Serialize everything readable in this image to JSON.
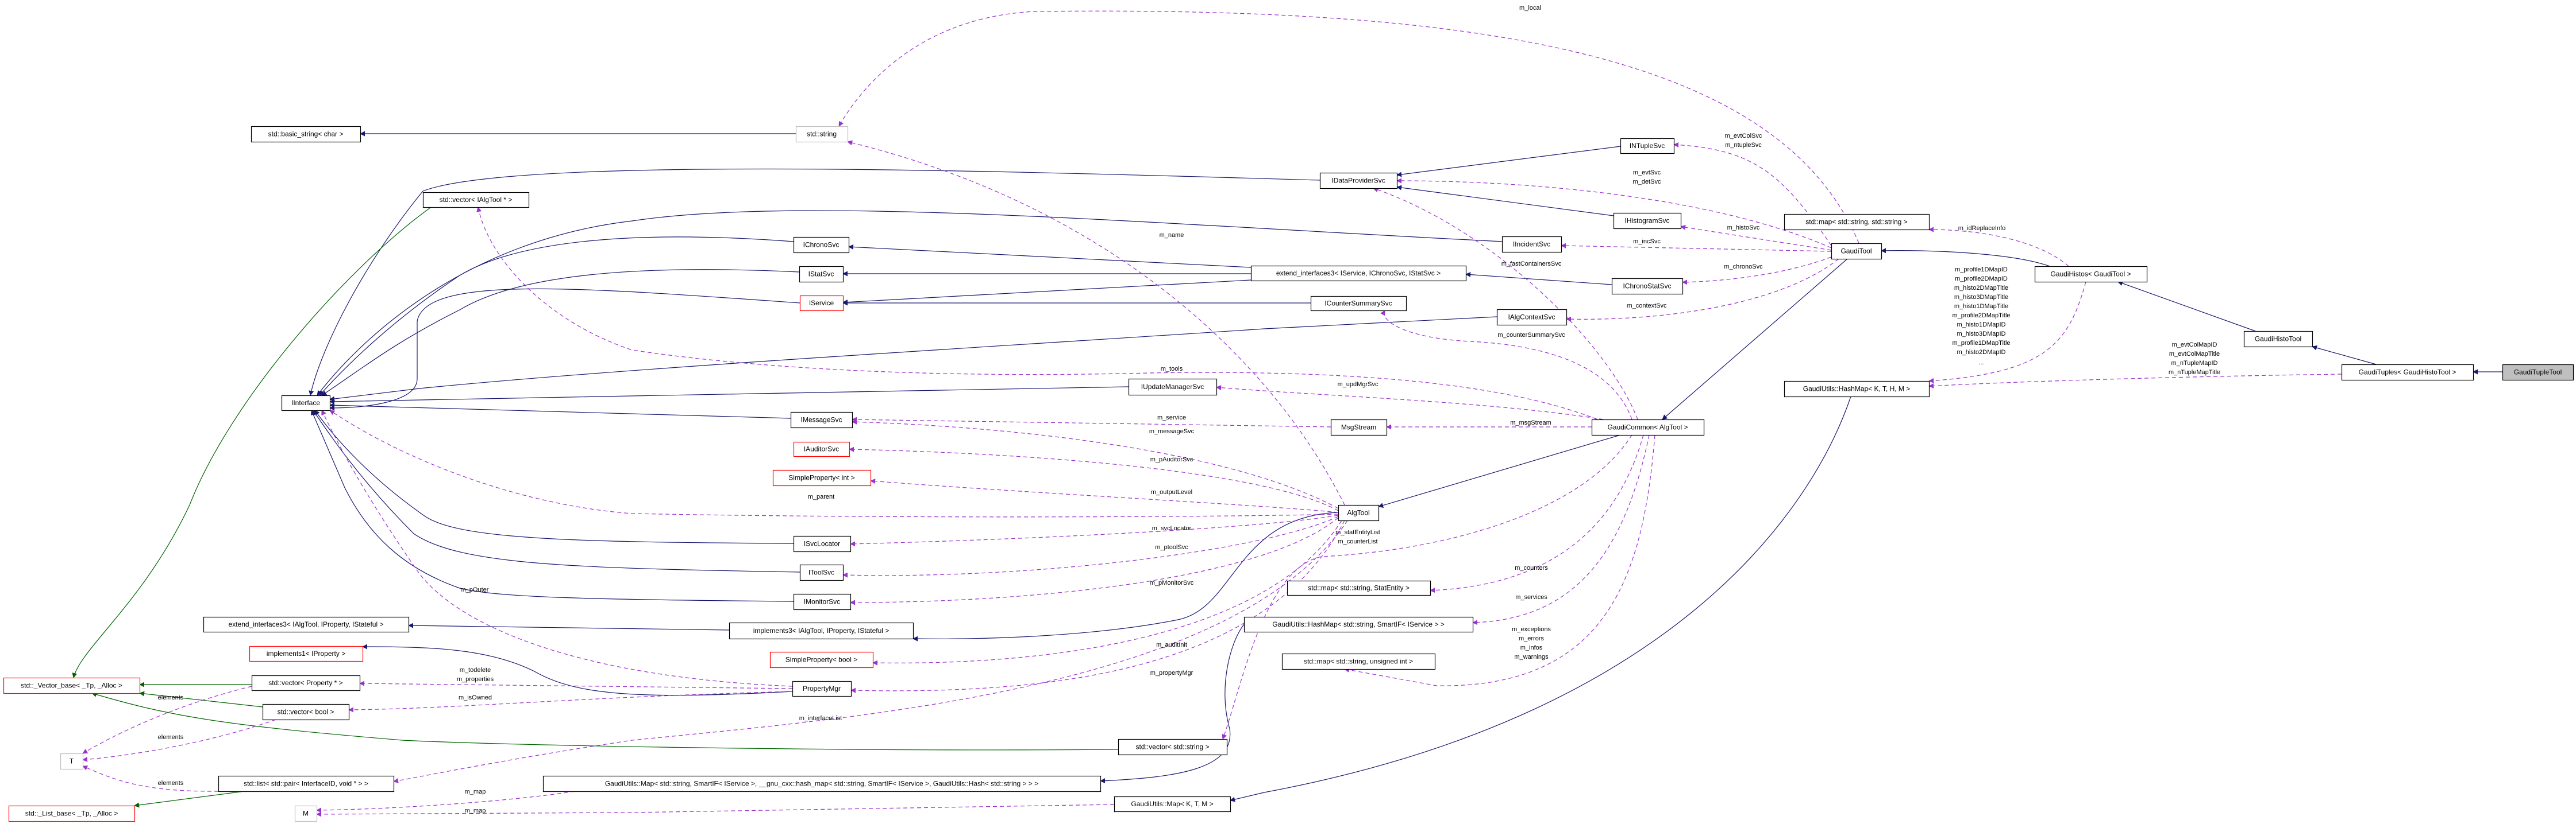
{
  "colors": {
    "inheritance": "#191970",
    "usage": "#9a32cd",
    "template": "#006400",
    "documented_border": "#000000",
    "undocumented_border": "#ff0000",
    "external_border": "#bfbfbf",
    "focus_fill": "#bfbfbf"
  },
  "nodes": [
    {
      "id": "basic_string",
      "label": "std::basic_string< char >",
      "border": "documented"
    },
    {
      "id": "std_string",
      "label": "std::string",
      "border": "external"
    },
    {
      "id": "vec_ialgtool",
      "label": "std::vector< IAlgTool * >",
      "border": "documented"
    },
    {
      "id": "IDataProviderSvc",
      "label": "IDataProviderSvc",
      "border": "documented"
    },
    {
      "id": "INTupleSvc",
      "label": "INTupleSvc",
      "border": "documented"
    },
    {
      "id": "IHistogramSvc",
      "label": "IHistogramSvc",
      "border": "documented"
    },
    {
      "id": "IIncidentSvc",
      "label": "IIncidentSvc",
      "border": "documented"
    },
    {
      "id": "IChronoSvc",
      "label": "IChronoSvc",
      "border": "documented"
    },
    {
      "id": "IStatSvc",
      "label": "IStatSvc",
      "border": "documented"
    },
    {
      "id": "IService",
      "label": "IService",
      "border": "undocumented"
    },
    {
      "id": "ext_svc",
      "label": "extend_interfaces3< IService, IChronoSvc, IStatSvc >",
      "border": "documented"
    },
    {
      "id": "IChronoStatSvc",
      "label": "IChronoStatSvc",
      "border": "documented"
    },
    {
      "id": "ICounterSummarySvc",
      "label": "ICounterSummarySvc",
      "border": "documented"
    },
    {
      "id": "IAlgContextSvc",
      "label": "IAlgContextSvc",
      "border": "documented"
    },
    {
      "id": "GaudiTool",
      "label": "GaudiTool",
      "border": "documented"
    },
    {
      "id": "map_str_str",
      "label": "std::map< std::string, std::string >",
      "border": "documented"
    },
    {
      "id": "GaudiHistos",
      "label": "GaudiHistos< GaudiTool >",
      "border": "documented"
    },
    {
      "id": "GaudiHistoTool",
      "label": "GaudiHistoTool",
      "border": "documented"
    },
    {
      "id": "GaudiTuples",
      "label": "GaudiTuples< GaudiHistoTool >",
      "border": "documented"
    },
    {
      "id": "GaudiTupleTool",
      "label": "GaudiTupleTool",
      "border": "documented",
      "focus": true
    },
    {
      "id": "HashMap_KTHM",
      "label": "GaudiUtils::HashMap< K, T, H, M >",
      "border": "documented"
    },
    {
      "id": "IInterface",
      "label": "IInterface",
      "border": "documented"
    },
    {
      "id": "IUpdateManagerSvc",
      "label": "IUpdateManagerSvc",
      "border": "documented"
    },
    {
      "id": "IMessageSvc",
      "label": "IMessageSvc",
      "border": "documented"
    },
    {
      "id": "MsgStream",
      "label": "MsgStream",
      "border": "documented"
    },
    {
      "id": "GaudiCommon",
      "label": "GaudiCommon< AlgTool >",
      "border": "documented"
    },
    {
      "id": "IAuditorSvc",
      "label": "IAuditorSvc",
      "border": "undocumented"
    },
    {
      "id": "SP_int",
      "label": "SimpleProperty< int >",
      "border": "undocumented"
    },
    {
      "id": "AlgTool",
      "label": "AlgTool",
      "border": "documented"
    },
    {
      "id": "ISvcLocator",
      "label": "ISvcLocator",
      "border": "documented"
    },
    {
      "id": "IToolSvc",
      "label": "IToolSvc",
      "border": "documented"
    },
    {
      "id": "map_str_stat",
      "label": "std::map< std::string, StatEntity >",
      "border": "documented"
    },
    {
      "id": "IMonitorSvc",
      "label": "IMonitorSvc",
      "border": "documented"
    },
    {
      "id": "ext_algtool",
      "label": "extend_interfaces3< IAlgTool, IProperty, IStateful >",
      "border": "documented"
    },
    {
      "id": "HashMap_svc",
      "label": "GaudiUtils::HashMap< std::string, SmartIF< IService > >",
      "border": "documented"
    },
    {
      "id": "implements3",
      "label": "implements3< IAlgTool, IProperty, IStateful >",
      "border": "documented"
    },
    {
      "id": "implements1",
      "label": "implements1< IProperty >",
      "border": "undocumented"
    },
    {
      "id": "SP_bool",
      "label": "SimpleProperty< bool >",
      "border": "undocumented"
    },
    {
      "id": "map_str_uint",
      "label": "std::map< std::string, unsigned int >",
      "border": "documented"
    },
    {
      "id": "vec_property",
      "label": "std::vector< Property * >",
      "border": "documented"
    },
    {
      "id": "vector_base",
      "label": "std::_Vector_base< _Tp, _Alloc >",
      "border": "undocumented"
    },
    {
      "id": "PropertyMgr",
      "label": "PropertyMgr",
      "border": "documented"
    },
    {
      "id": "vec_bool",
      "label": "std::vector< bool >",
      "border": "documented"
    },
    {
      "id": "vec_string",
      "label": "std::vector< std::string >",
      "border": "documented"
    },
    {
      "id": "T",
      "label": "T",
      "border": "external"
    },
    {
      "id": "list_pair",
      "label": "std::list< std::pair< InterfaceID, void * > >",
      "border": "documented"
    },
    {
      "id": "Map_long",
      "label": "GaudiUtils::Map< std::string, SmartIF< IService >, __gnu_cxx::hash_map< std::string, SmartIF< IService >, GaudiUtils::Hash< std::string > > >",
      "border": "documented"
    },
    {
      "id": "Map_KTM",
      "label": "GaudiUtils::Map< K, T, M >",
      "border": "documented"
    },
    {
      "id": "list_base",
      "label": "std::_List_base< _Tp, _Alloc >",
      "border": "undocumented"
    },
    {
      "id": "M",
      "label": "M",
      "border": "external"
    }
  ],
  "edges": [
    {
      "from": "std_string",
      "to": "basic_string",
      "kind": "inheritance",
      "labels": []
    },
    {
      "from": "IDataProviderSvc",
      "to": "IInterface",
      "kind": "inheritance",
      "labels": []
    },
    {
      "from": "INTupleSvc",
      "to": "IDataProviderSvc",
      "kind": "inheritance",
      "labels": []
    },
    {
      "from": "IHistogramSvc",
      "to": "IDataProviderSvc",
      "kind": "inheritance",
      "labels": []
    },
    {
      "from": "IIncidentSvc",
      "to": "IInterface",
      "kind": "inheritance",
      "labels": []
    },
    {
      "from": "IChronoSvc",
      "to": "IInterface",
      "kind": "inheritance",
      "labels": []
    },
    {
      "from": "IStatSvc",
      "to": "IInterface",
      "kind": "inheritance",
      "labels": []
    },
    {
      "from": "IService",
      "to": "IInterface",
      "kind": "inheritance",
      "labels": []
    },
    {
      "from": "IAlgContextSvc",
      "to": "IInterface",
      "kind": "inheritance",
      "labels": []
    },
    {
      "from": "ICounterSummarySvc",
      "to": "IService",
      "kind": "inheritance",
      "labels": []
    },
    {
      "from": "ext_svc",
      "to": "IChronoSvc",
      "kind": "inheritance",
      "labels": []
    },
    {
      "from": "ext_svc",
      "to": "IStatSvc",
      "kind": "inheritance",
      "labels": []
    },
    {
      "from": "ext_svc",
      "to": "IService",
      "kind": "inheritance",
      "labels": []
    },
    {
      "from": "IChronoStatSvc",
      "to": "ext_svc",
      "kind": "inheritance",
      "labels": []
    },
    {
      "from": "IUpdateManagerSvc",
      "to": "IInterface",
      "kind": "inheritance",
      "labels": []
    },
    {
      "from": "IMessageSvc",
      "to": "IInterface",
      "kind": "inheritance",
      "labels": []
    },
    {
      "from": "ISvcLocator",
      "to": "IInterface",
      "kind": "inheritance",
      "labels": []
    },
    {
      "from": "IToolSvc",
      "to": "IInterface",
      "kind": "inheritance",
      "labels": []
    },
    {
      "from": "IMonitorSvc",
      "to": "IInterface",
      "kind": "inheritance",
      "labels": []
    },
    {
      "from": "implements3",
      "to": "ext_algtool",
      "kind": "inheritance",
      "labels": []
    },
    {
      "from": "AlgTool",
      "to": "implements3",
      "kind": "inheritance",
      "labels": []
    },
    {
      "from": "HashMap_svc",
      "to": "Map_long",
      "kind": "inheritance",
      "labels": []
    },
    {
      "from": "PropertyMgr",
      "to": "implements1",
      "kind": "inheritance",
      "labels": []
    },
    {
      "from": "HashMap_KTHM",
      "to": "Map_KTM",
      "kind": "inheritance",
      "labels": []
    },
    {
      "from": "GaudiCommon",
      "to": "AlgTool",
      "kind": "inheritance",
      "labels": []
    },
    {
      "from": "GaudiTool",
      "to": "GaudiCommon",
      "kind": "inheritance",
      "labels": []
    },
    {
      "from": "GaudiHistos",
      "to": "GaudiTool",
      "kind": "inheritance",
      "labels": []
    },
    {
      "from": "GaudiHistoTool",
      "to": "GaudiHistos",
      "kind": "inheritance",
      "labels": []
    },
    {
      "from": "GaudiTuples",
      "to": "GaudiHistoTool",
      "kind": "inheritance",
      "labels": []
    },
    {
      "from": "GaudiTupleTool",
      "to": "GaudiTuples",
      "kind": "inheritance",
      "labels": []
    },
    {
      "from": "vec_ialgtool",
      "to": "vector_base",
      "kind": "template",
      "labels": []
    },
    {
      "from": "vec_property",
      "to": "vector_base",
      "kind": "template",
      "labels": []
    },
    {
      "from": "vec_bool",
      "to": "vector_base",
      "kind": "template",
      "labels": []
    },
    {
      "from": "vec_string",
      "to": "vector_base",
      "kind": "template",
      "labels": []
    },
    {
      "from": "list_pair",
      "to": "list_base",
      "kind": "template",
      "labels": []
    },
    {
      "from": "vec_property",
      "to": "T",
      "kind": "usage",
      "labels": [
        "elements"
      ]
    },
    {
      "from": "vec_bool",
      "to": "T",
      "kind": "usage",
      "labels": [
        "elements"
      ]
    },
    {
      "from": "list_pair",
      "to": "T",
      "kind": "usage",
      "labels": [
        "elements"
      ]
    },
    {
      "from": "AlgTool",
      "to": "std_string",
      "kind": "usage",
      "labels": [
        "m_name"
      ]
    },
    {
      "from": "GaudiTool",
      "to": "std_string",
      "kind": "usage",
      "labels": [
        "m_local"
      ]
    },
    {
      "from": "GaudiCommon",
      "to": "vec_ialgtool",
      "kind": "usage",
      "labels": [
        "m_tools"
      ]
    },
    {
      "from": "GaudiCommon",
      "to": "IUpdateManagerSvc",
      "kind": "usage",
      "labels": [
        "m_updMgrSvc"
      ]
    },
    {
      "from": "GaudiCommon",
      "to": "MsgStream",
      "kind": "usage",
      "labels": [
        "m_msgStream"
      ]
    },
    {
      "from": "MsgStream",
      "to": "IMessageSvc",
      "kind": "usage",
      "labels": [
        "m_service"
      ]
    },
    {
      "from": "AlgTool",
      "to": "IMessageSvc",
      "kind": "usage",
      "labels": [
        "m_messageSvc"
      ]
    },
    {
      "from": "AlgTool",
      "to": "IAuditorSvc",
      "kind": "usage",
      "labels": [
        "m_pAuditorSvc"
      ]
    },
    {
      "from": "AlgTool",
      "to": "SP_int",
      "kind": "usage",
      "labels": [
        "m_outputLevel"
      ]
    },
    {
      "from": "AlgTool",
      "to": "IInterface",
      "kind": "usage",
      "labels": [
        "m_parent"
      ]
    },
    {
      "from": "PropertyMgr",
      "to": "IInterface",
      "kind": "usage",
      "labels": [
        "m_pOuter"
      ]
    },
    {
      "from": "AlgTool",
      "to": "ISvcLocator",
      "kind": "usage",
      "labels": [
        "m_svcLocator"
      ]
    },
    {
      "from": "AlgTool",
      "to": "IToolSvc",
      "kind": "usage",
      "labels": [
        "m_ptoolSvc"
      ]
    },
    {
      "from": "AlgTool",
      "to": "IMonitorSvc",
      "kind": "usage",
      "labels": [
        "m_pMonitorSvc"
      ]
    },
    {
      "from": "AlgTool",
      "to": "SP_bool",
      "kind": "usage",
      "labels": [
        "m_auditInit"
      ]
    },
    {
      "from": "AlgTool",
      "to": "PropertyMgr",
      "kind": "usage",
      "labels": [
        "m_propertyMgr"
      ]
    },
    {
      "from": "AlgTool",
      "to": "list_pair",
      "kind": "usage",
      "labels": [
        "m_interfaceList"
      ]
    },
    {
      "from": "PropertyMgr",
      "to": "vec_property",
      "kind": "usage",
      "labels": [
        "m_todelete",
        "m_properties"
      ]
    },
    {
      "from": "PropertyMgr",
      "to": "vec_bool",
      "kind": "usage",
      "labels": [
        "m_isOwned"
      ]
    },
    {
      "from": "Map_long",
      "to": "M",
      "kind": "usage",
      "labels": [
        "m_map"
      ]
    },
    {
      "from": "Map_KTM",
      "to": "M",
      "kind": "usage",
      "labels": [
        "m_map"
      ]
    },
    {
      "from": "GaudiCommon",
      "to": "IDataProviderSvc",
      "kind": "usage",
      "labels": [
        "m_fastContainersSvc"
      ]
    },
    {
      "from": "GaudiCommon",
      "to": "ICounterSummarySvc",
      "kind": "usage",
      "labels": [
        "m_counterSummarySvc"
      ]
    },
    {
      "from": "GaudiCommon",
      "to": "map_str_stat",
      "kind": "usage",
      "labels": [
        "m_counters"
      ]
    },
    {
      "from": "GaudiCommon",
      "to": "vec_string",
      "kind": "usage",
      "labels": [
        "m_statEntityList",
        "m_counterList"
      ]
    },
    {
      "from": "GaudiCommon",
      "to": "HashMap_svc",
      "kind": "usage",
      "labels": [
        "m_services"
      ]
    },
    {
      "from": "GaudiCommon",
      "to": "map_str_uint",
      "kind": "usage",
      "labels": [
        "m_exceptions",
        "m_errors",
        "m_infos",
        "m_warnings"
      ]
    },
    {
      "from": "GaudiTool",
      "to": "INTupleSvc",
      "kind": "usage",
      "labels": [
        "m_evtColSvc",
        "m_ntupleSvc"
      ]
    },
    {
      "from": "GaudiTool",
      "to": "IDataProviderSvc",
      "kind": "usage",
      "labels": [
        "m_evtSvc",
        "m_detSvc"
      ]
    },
    {
      "from": "GaudiTool",
      "to": "IHistogramSvc",
      "kind": "usage",
      "labels": [
        "m_histoSvc"
      ]
    },
    {
      "from": "GaudiTool",
      "to": "IIncidentSvc",
      "kind": "usage",
      "labels": [
        "m_incSvc"
      ]
    },
    {
      "from": "GaudiTool",
      "to": "IChronoStatSvc",
      "kind": "usage",
      "labels": [
        "m_chronoSvc"
      ]
    },
    {
      "from": "GaudiTool",
      "to": "IAlgContextSvc",
      "kind": "usage",
      "labels": [
        "m_contextSvc"
      ]
    },
    {
      "from": "GaudiHistos",
      "to": "map_str_str",
      "kind": "usage",
      "labels": [
        "m_idReplaceInfo"
      ]
    },
    {
      "from": "GaudiHistos",
      "to": "HashMap_KTHM",
      "kind": "usage",
      "labels": [
        "m_profile1DMapID",
        "m_profile2DMapID",
        "m_histo2DMapTitle",
        "m_histo3DMapTitle",
        "m_histo1DMapTitle",
        "m_profile2DMapTitle",
        "m_histo1DMapID",
        "m_histo3DMapID",
        "m_profile1DMapTitle",
        "m_histo2DMapID",
        "..."
      ]
    },
    {
      "from": "GaudiTuples",
      "to": "HashMap_KTHM",
      "kind": "usage",
      "labels": [
        "m_evtColMapID",
        "m_evtColMapTitle",
        "m_nTupleMapID",
        "m_nTupleMapTitle"
      ]
    }
  ]
}
